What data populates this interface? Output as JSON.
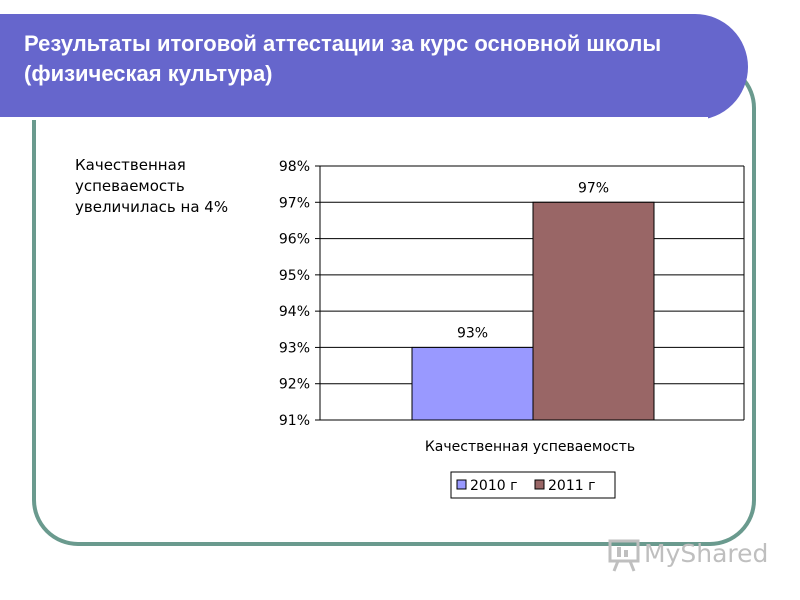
{
  "slide": {
    "title": "Результаты итоговой аттестации за курс основной школы (физическая культура)",
    "note": "Качественная успеваемость увеличилась на 4%",
    "logo_text": "MyShared"
  },
  "colors": {
    "title_bar": "#6666cc",
    "frame_border": "#6a9a8e",
    "series_2010": "#9999ff",
    "series_2011": "#993366"
  },
  "chart_data": {
    "type": "bar",
    "categories": [
      "Качественная успеваемость"
    ],
    "series": [
      {
        "name": "2010 г",
        "values": [
          93
        ],
        "label": "93%",
        "color": "#9999ff"
      },
      {
        "name": "2011 г",
        "values": [
          97
        ],
        "label": "97%",
        "color": "#996666"
      }
    ],
    "ylim": [
      91,
      98
    ],
    "yticks": [
      "91%",
      "92%",
      "93%",
      "94%",
      "95%",
      "96%",
      "97%",
      "98%"
    ],
    "grid": true,
    "legend": "bottom"
  }
}
